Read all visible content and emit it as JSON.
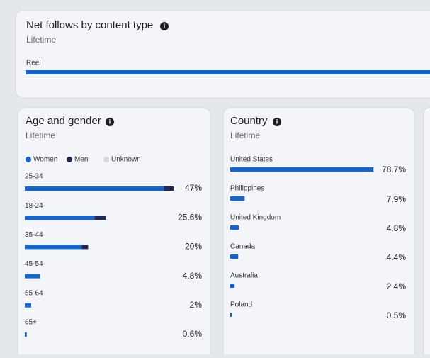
{
  "net_follows": {
    "title": "Net follows by content type",
    "subtitle": "Lifetime",
    "items": [
      "Reel"
    ]
  },
  "age_gender": {
    "title": "Age and gender",
    "subtitle": "Lifetime",
    "legend": [
      {
        "name": "Women",
        "color": "#1366d6"
      },
      {
        "name": "Men",
        "color": "#1c2b57"
      },
      {
        "name": "Unknown",
        "color": "#d5dae2"
      }
    ],
    "groups": [
      {
        "label": "25-34",
        "value": 47,
        "value_label": "47%",
        "women": 44,
        "men": 3
      },
      {
        "label": "18-24",
        "value": 25.6,
        "value_label": "25.6%",
        "women": 22,
        "men": 3.6
      },
      {
        "label": "35-44",
        "value": 20,
        "value_label": "20%",
        "women": 18,
        "men": 2
      },
      {
        "label": "45-54",
        "value": 4.8,
        "value_label": "4.8%",
        "women": 4.8,
        "men": 0
      },
      {
        "label": "55-64",
        "value": 2,
        "value_label": "2%",
        "women": 2,
        "men": 0
      },
      {
        "label": "65+",
        "value": 0.6,
        "value_label": "0.6%",
        "women": 0.6,
        "men": 0
      }
    ]
  },
  "country": {
    "title": "Country",
    "subtitle": "Lifetime",
    "color": "#1366d6",
    "rows": [
      {
        "label": "United States",
        "value": 78.7,
        "value_label": "78.7%"
      },
      {
        "label": "Philippines",
        "value": 7.9,
        "value_label": "7.9%"
      },
      {
        "label": "United Kingdom",
        "value": 4.8,
        "value_label": "4.8%"
      },
      {
        "label": "Canada",
        "value": 4.4,
        "value_label": "4.4%"
      },
      {
        "label": "Australia",
        "value": 2.4,
        "value_label": "2.4%"
      },
      {
        "label": "Poland",
        "value": 0.5,
        "value_label": "0.5%"
      }
    ]
  }
}
